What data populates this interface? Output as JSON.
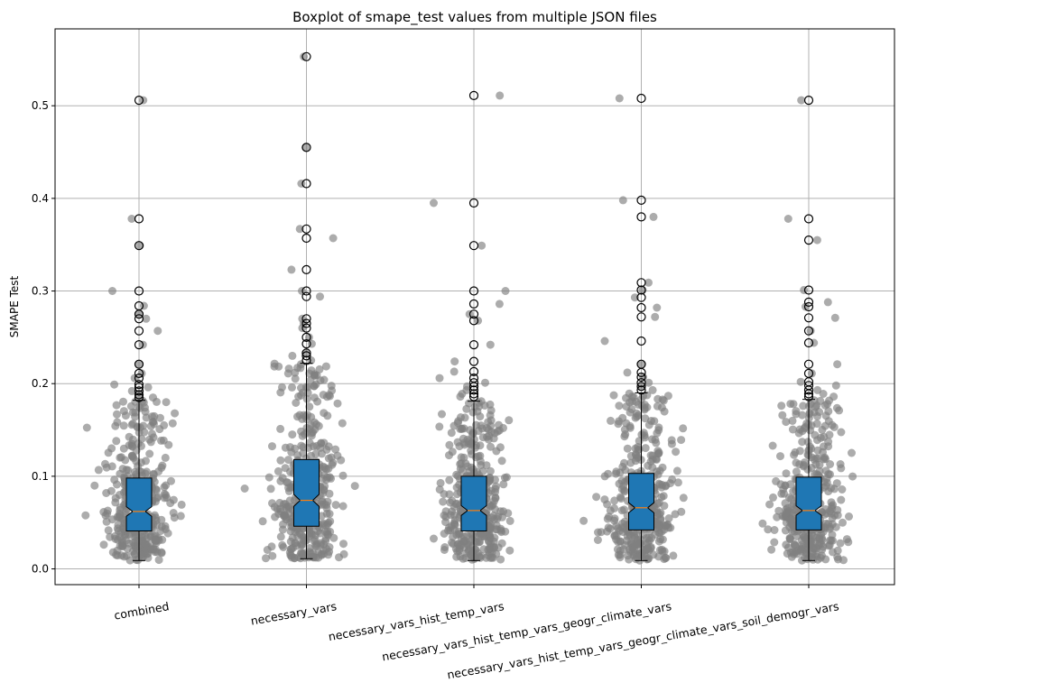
{
  "chart_data": {
    "type": "box",
    "title": "Boxplot of smape_test values from multiple JSON files",
    "xlabel": "",
    "ylabel": "SMAPE Test",
    "ylim": [
      -0.017,
      0.583
    ],
    "yticks": [
      0.0,
      0.1,
      0.2,
      0.3,
      0.4,
      0.5
    ],
    "ytick_labels": [
      "0.0",
      "0.1",
      "0.2",
      "0.3",
      "0.4",
      "0.5"
    ],
    "grid": true,
    "categories": [
      "combined",
      "necessary_vars",
      "necessary_vars_hist_temp_vars",
      "necessary_vars_hist_temp_vars_geogr_climate_vars",
      "necessary_vars_hist_temp_vars_geogr_climate_vars_soil_demogr_vars"
    ],
    "boxes": [
      {
        "q1": 0.041,
        "median": 0.062,
        "q3": 0.098,
        "whisker_low": 0.009,
        "whisker_high": 0.182,
        "outliers": [
          0.185,
          0.188,
          0.192,
          0.196,
          0.199,
          0.206,
          0.211,
          0.221,
          0.242,
          0.257,
          0.27,
          0.275,
          0.284,
          0.3,
          0.349,
          0.378,
          0.506
        ]
      },
      {
        "q1": 0.046,
        "median": 0.074,
        "q3": 0.118,
        "whisker_low": 0.011,
        "whisker_high": 0.222,
        "outliers": [
          0.225,
          0.23,
          0.233,
          0.243,
          0.25,
          0.26,
          0.265,
          0.27,
          0.294,
          0.3,
          0.323,
          0.357,
          0.367,
          0.416,
          0.455,
          0.553
        ]
      },
      {
        "q1": 0.041,
        "median": 0.063,
        "q3": 0.1,
        "whisker_low": 0.009,
        "whisker_high": 0.181,
        "outliers": [
          0.186,
          0.189,
          0.193,
          0.197,
          0.201,
          0.206,
          0.213,
          0.224,
          0.242,
          0.268,
          0.275,
          0.286,
          0.3,
          0.349,
          0.395,
          0.511
        ]
      },
      {
        "q1": 0.042,
        "median": 0.066,
        "q3": 0.103,
        "whisker_low": 0.009,
        "whisker_high": 0.19,
        "outliers": [
          0.193,
          0.197,
          0.201,
          0.207,
          0.212,
          0.221,
          0.246,
          0.272,
          0.282,
          0.293,
          0.301,
          0.309,
          0.38,
          0.398,
          0.508
        ]
      },
      {
        "q1": 0.042,
        "median": 0.063,
        "q3": 0.099,
        "whisker_low": 0.009,
        "whisker_high": 0.183,
        "outliers": [
          0.186,
          0.189,
          0.193,
          0.198,
          0.202,
          0.211,
          0.221,
          0.244,
          0.257,
          0.271,
          0.283,
          0.288,
          0.301,
          0.355,
          0.378,
          0.506
        ]
      }
    ],
    "box_color": "#1f77b4",
    "median_color": "#ff7f0e",
    "scatter_color": "#808080",
    "grid_color": "#b0b0b0"
  }
}
